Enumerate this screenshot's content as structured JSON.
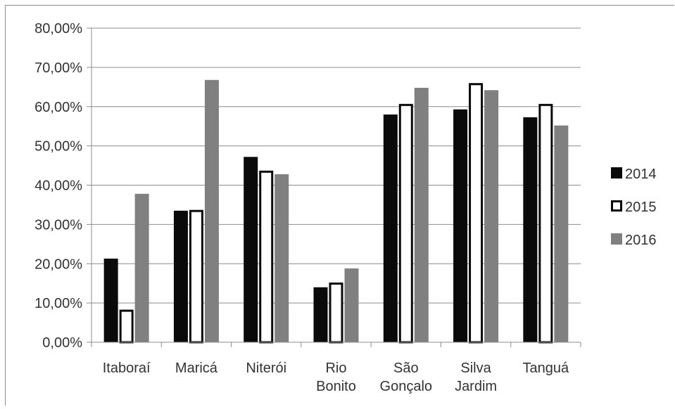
{
  "chart_data": {
    "type": "bar",
    "title": "",
    "xlabel": "",
    "ylabel": "",
    "ylim": [
      0,
      0.8
    ],
    "y_ticks": [
      "0,00%",
      "10,00%",
      "20,00%",
      "30,00%",
      "40,00%",
      "50,00%",
      "60,00%",
      "70,00%",
      "80,00%"
    ],
    "grid": true,
    "legend_position": "right",
    "categories": [
      [
        "Itaboraí"
      ],
      [
        "Maricá"
      ],
      [
        "Niterói"
      ],
      [
        "Rio",
        "Bonito"
      ],
      [
        "São",
        "Gonçalo"
      ],
      [
        "Silva",
        "Jardim"
      ],
      [
        "Tanguá"
      ]
    ],
    "series": [
      {
        "name": "2014",
        "values": [
          0.213,
          0.335,
          0.472,
          0.14,
          0.58,
          0.593,
          0.573
        ],
        "color": "#0a0a0a",
        "style": "solid"
      },
      {
        "name": "2015",
        "values": [
          0.083,
          0.337,
          0.437,
          0.152,
          0.607,
          0.66,
          0.607
        ],
        "color": "#ffffff",
        "style": "outline"
      },
      {
        "name": "2016",
        "values": [
          0.378,
          0.668,
          0.428,
          0.188,
          0.648,
          0.642,
          0.552
        ],
        "color": "#808080",
        "style": "solid"
      }
    ]
  }
}
